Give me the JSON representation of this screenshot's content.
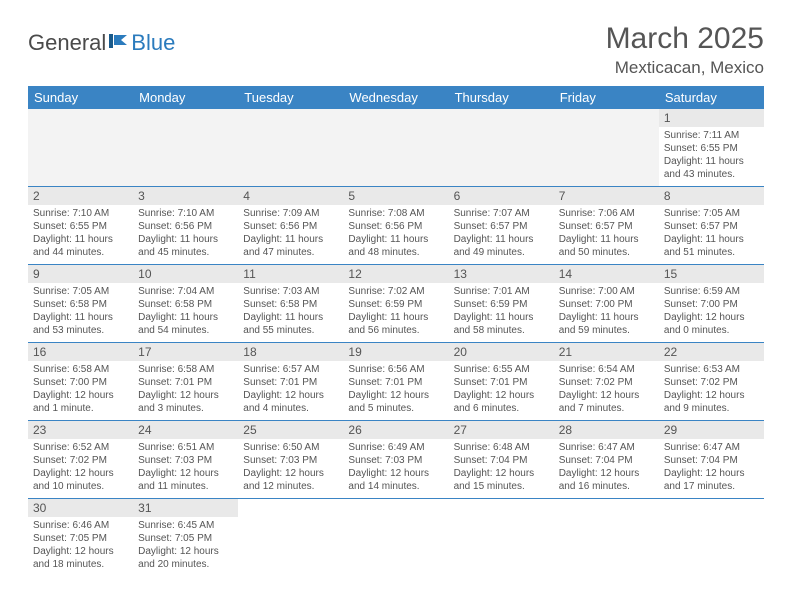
{
  "logo": {
    "part1": "General",
    "part2": "Blue"
  },
  "title": "March 2025",
  "location": "Mexticacan, Mexico",
  "colors": {
    "header_bg": "#3a84c4",
    "header_text": "#ffffff",
    "daynum_bg": "#e9e9e9",
    "body_text": "#555555",
    "cell_border": "#3a84c4",
    "logo_dark": "#4a4a4a",
    "logo_blue": "#2b7bbd"
  },
  "weekdays": [
    "Sunday",
    "Monday",
    "Tuesday",
    "Wednesday",
    "Thursday",
    "Friday",
    "Saturday"
  ],
  "weeks": [
    [
      null,
      null,
      null,
      null,
      null,
      null,
      {
        "n": "1",
        "sr": "Sunrise: 7:11 AM",
        "ss": "Sunset: 6:55 PM",
        "dl": "Daylight: 11 hours and 43 minutes."
      }
    ],
    [
      {
        "n": "2",
        "sr": "Sunrise: 7:10 AM",
        "ss": "Sunset: 6:55 PM",
        "dl": "Daylight: 11 hours and 44 minutes."
      },
      {
        "n": "3",
        "sr": "Sunrise: 7:10 AM",
        "ss": "Sunset: 6:56 PM",
        "dl": "Daylight: 11 hours and 45 minutes."
      },
      {
        "n": "4",
        "sr": "Sunrise: 7:09 AM",
        "ss": "Sunset: 6:56 PM",
        "dl": "Daylight: 11 hours and 47 minutes."
      },
      {
        "n": "5",
        "sr": "Sunrise: 7:08 AM",
        "ss": "Sunset: 6:56 PM",
        "dl": "Daylight: 11 hours and 48 minutes."
      },
      {
        "n": "6",
        "sr": "Sunrise: 7:07 AM",
        "ss": "Sunset: 6:57 PM",
        "dl": "Daylight: 11 hours and 49 minutes."
      },
      {
        "n": "7",
        "sr": "Sunrise: 7:06 AM",
        "ss": "Sunset: 6:57 PM",
        "dl": "Daylight: 11 hours and 50 minutes."
      },
      {
        "n": "8",
        "sr": "Sunrise: 7:05 AM",
        "ss": "Sunset: 6:57 PM",
        "dl": "Daylight: 11 hours and 51 minutes."
      }
    ],
    [
      {
        "n": "9",
        "sr": "Sunrise: 7:05 AM",
        "ss": "Sunset: 6:58 PM",
        "dl": "Daylight: 11 hours and 53 minutes."
      },
      {
        "n": "10",
        "sr": "Sunrise: 7:04 AM",
        "ss": "Sunset: 6:58 PM",
        "dl": "Daylight: 11 hours and 54 minutes."
      },
      {
        "n": "11",
        "sr": "Sunrise: 7:03 AM",
        "ss": "Sunset: 6:58 PM",
        "dl": "Daylight: 11 hours and 55 minutes."
      },
      {
        "n": "12",
        "sr": "Sunrise: 7:02 AM",
        "ss": "Sunset: 6:59 PM",
        "dl": "Daylight: 11 hours and 56 minutes."
      },
      {
        "n": "13",
        "sr": "Sunrise: 7:01 AM",
        "ss": "Sunset: 6:59 PM",
        "dl": "Daylight: 11 hours and 58 minutes."
      },
      {
        "n": "14",
        "sr": "Sunrise: 7:00 AM",
        "ss": "Sunset: 7:00 PM",
        "dl": "Daylight: 11 hours and 59 minutes."
      },
      {
        "n": "15",
        "sr": "Sunrise: 6:59 AM",
        "ss": "Sunset: 7:00 PM",
        "dl": "Daylight: 12 hours and 0 minutes."
      }
    ],
    [
      {
        "n": "16",
        "sr": "Sunrise: 6:58 AM",
        "ss": "Sunset: 7:00 PM",
        "dl": "Daylight: 12 hours and 1 minute."
      },
      {
        "n": "17",
        "sr": "Sunrise: 6:58 AM",
        "ss": "Sunset: 7:01 PM",
        "dl": "Daylight: 12 hours and 3 minutes."
      },
      {
        "n": "18",
        "sr": "Sunrise: 6:57 AM",
        "ss": "Sunset: 7:01 PM",
        "dl": "Daylight: 12 hours and 4 minutes."
      },
      {
        "n": "19",
        "sr": "Sunrise: 6:56 AM",
        "ss": "Sunset: 7:01 PM",
        "dl": "Daylight: 12 hours and 5 minutes."
      },
      {
        "n": "20",
        "sr": "Sunrise: 6:55 AM",
        "ss": "Sunset: 7:01 PM",
        "dl": "Daylight: 12 hours and 6 minutes."
      },
      {
        "n": "21",
        "sr": "Sunrise: 6:54 AM",
        "ss": "Sunset: 7:02 PM",
        "dl": "Daylight: 12 hours and 7 minutes."
      },
      {
        "n": "22",
        "sr": "Sunrise: 6:53 AM",
        "ss": "Sunset: 7:02 PM",
        "dl": "Daylight: 12 hours and 9 minutes."
      }
    ],
    [
      {
        "n": "23",
        "sr": "Sunrise: 6:52 AM",
        "ss": "Sunset: 7:02 PM",
        "dl": "Daylight: 12 hours and 10 minutes."
      },
      {
        "n": "24",
        "sr": "Sunrise: 6:51 AM",
        "ss": "Sunset: 7:03 PM",
        "dl": "Daylight: 12 hours and 11 minutes."
      },
      {
        "n": "25",
        "sr": "Sunrise: 6:50 AM",
        "ss": "Sunset: 7:03 PM",
        "dl": "Daylight: 12 hours and 12 minutes."
      },
      {
        "n": "26",
        "sr": "Sunrise: 6:49 AM",
        "ss": "Sunset: 7:03 PM",
        "dl": "Daylight: 12 hours and 14 minutes."
      },
      {
        "n": "27",
        "sr": "Sunrise: 6:48 AM",
        "ss": "Sunset: 7:04 PM",
        "dl": "Daylight: 12 hours and 15 minutes."
      },
      {
        "n": "28",
        "sr": "Sunrise: 6:47 AM",
        "ss": "Sunset: 7:04 PM",
        "dl": "Daylight: 12 hours and 16 minutes."
      },
      {
        "n": "29",
        "sr": "Sunrise: 6:47 AM",
        "ss": "Sunset: 7:04 PM",
        "dl": "Daylight: 12 hours and 17 minutes."
      }
    ],
    [
      {
        "n": "30",
        "sr": "Sunrise: 6:46 AM",
        "ss": "Sunset: 7:05 PM",
        "dl": "Daylight: 12 hours and 18 minutes."
      },
      {
        "n": "31",
        "sr": "Sunrise: 6:45 AM",
        "ss": "Sunset: 7:05 PM",
        "dl": "Daylight: 12 hours and 20 minutes."
      },
      null,
      null,
      null,
      null,
      null
    ]
  ]
}
